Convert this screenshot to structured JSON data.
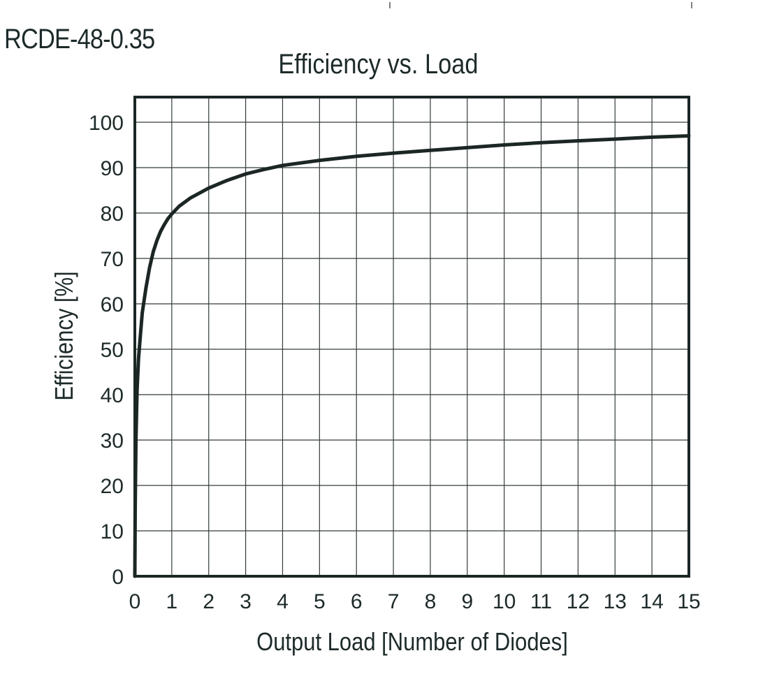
{
  "header": {
    "model": "RCDE-48-0.35"
  },
  "chart_data": {
    "type": "line",
    "title": "Efficiency vs. Load",
    "xlabel": "Output Load [Number of Diodes]",
    "ylabel": "Efficiency [%]",
    "xlim": [
      0,
      15
    ],
    "ylim": [
      0,
      105
    ],
    "grid": true,
    "xticks": [
      "0",
      "1",
      "2",
      "3",
      "4",
      "5",
      "6",
      "7",
      "8",
      "9",
      "10",
      "11",
      "12",
      "13",
      "14",
      "15"
    ],
    "yticks": [
      "0",
      "10",
      "20",
      "30",
      "40",
      "50",
      "60",
      "70",
      "80",
      "90",
      "100"
    ],
    "series": [
      {
        "color": "#1b2625",
        "x": [
          0.0,
          0.01,
          0.03,
          0.06,
          0.1,
          0.15,
          0.2,
          0.3,
          0.4,
          0.5,
          0.6,
          0.7,
          0.8,
          0.9,
          1.0,
          1.2,
          1.5,
          2.0,
          2.5,
          3.0,
          3.5,
          4.0,
          5.0,
          6.0,
          7.0,
          8.0,
          9.0,
          10.0,
          11.0,
          12.0,
          13.0,
          14.0,
          15.0
        ],
        "y": [
          0,
          15,
          30,
          41,
          48,
          53,
          58,
          63.5,
          68,
          71.5,
          74,
          76,
          77.5,
          78.8,
          79.8,
          81.5,
          83.3,
          85.5,
          87.2,
          88.6,
          89.6,
          90.5,
          91.6,
          92.5,
          93.2,
          93.8,
          94.4,
          95.0,
          95.5,
          95.9,
          96.3,
          96.7,
          97.0
        ]
      }
    ]
  }
}
